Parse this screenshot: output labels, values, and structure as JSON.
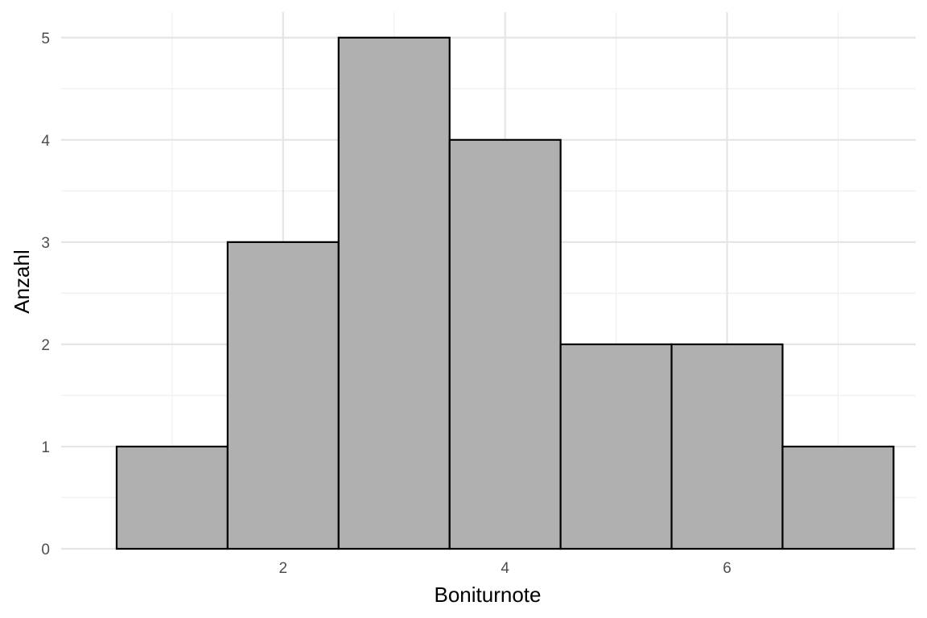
{
  "chart_data": {
    "type": "bar",
    "subtype": "histogram",
    "title": "",
    "xlabel": "Boniturnote",
    "ylabel": "Anzahl",
    "bins": [
      {
        "x": 1,
        "count": 1
      },
      {
        "x": 2,
        "count": 3
      },
      {
        "x": 3,
        "count": 5
      },
      {
        "x": 4,
        "count": 4
      },
      {
        "x": 5,
        "count": 2
      },
      {
        "x": 6,
        "count": 2
      },
      {
        "x": 7,
        "count": 1
      }
    ],
    "bin_width": 1,
    "xlim": [
      0.0,
      7.7
    ],
    "ylim": [
      0,
      5.25
    ],
    "x_ticks": [
      "2",
      "4",
      "6"
    ],
    "x_tick_values": [
      2,
      4,
      6
    ],
    "x_minor_tick_values": [
      1,
      3,
      5,
      7
    ],
    "y_ticks": [
      "0",
      "1",
      "2",
      "3",
      "4",
      "5"
    ],
    "y_tick_values": [
      0,
      1,
      2,
      3,
      4,
      5
    ],
    "y_minor_tick_values": [
      0.5,
      1.5,
      2.5,
      3.5,
      4.5
    ],
    "grid": true,
    "legend": "none",
    "colors": {
      "bar_fill": "#b0b0b0",
      "bar_stroke": "#000000",
      "grid_major": "#e5e5e5",
      "grid_minor": "#f0f0f0",
      "background": "#ffffff"
    }
  }
}
